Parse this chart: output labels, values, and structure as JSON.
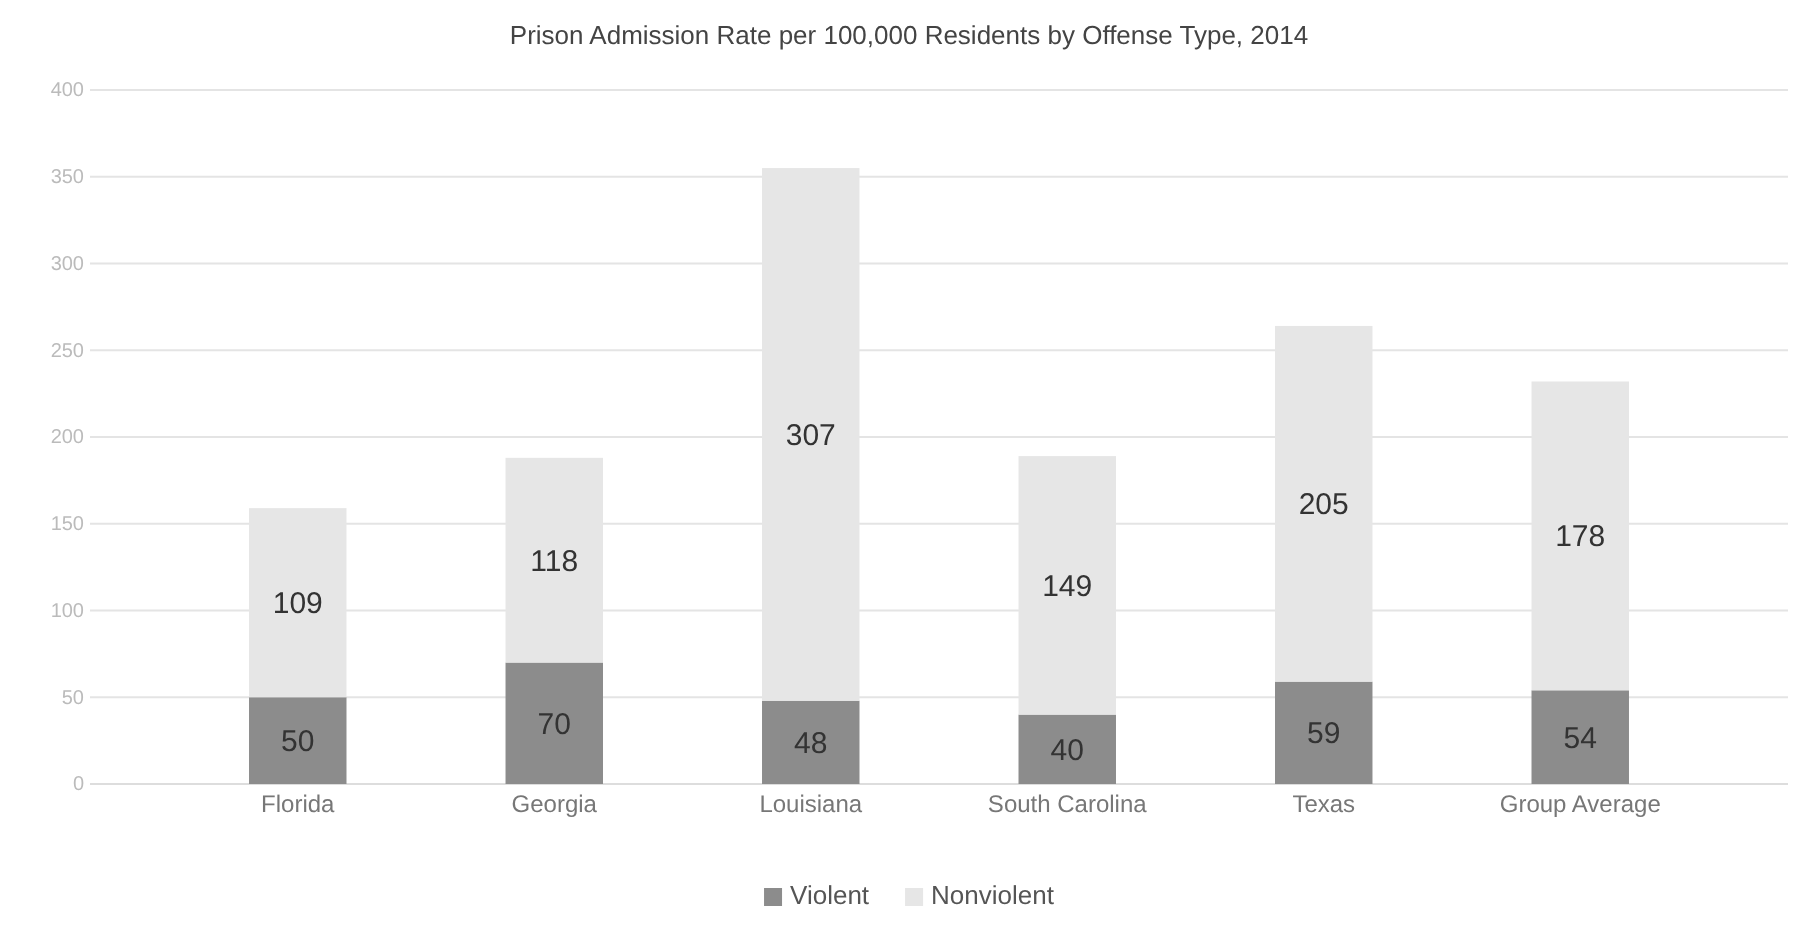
{
  "chart_data": {
    "type": "bar",
    "title": "Prison Admission Rate per 100,000 Residents by Offense Type, 2014",
    "categories": [
      "Florida",
      "Georgia",
      "Louisiana",
      "South Carolina",
      "Texas",
      "Group Average"
    ],
    "series": [
      {
        "name": "Violent",
        "color": "#8c8c8c",
        "values": [
          50,
          70,
          48,
          40,
          59,
          54
        ]
      },
      {
        "name": "Nonviolent",
        "color": "#e6e6e6",
        "values": [
          109,
          118,
          307,
          149,
          205,
          178
        ]
      }
    ],
    "stacked": true,
    "ylim": [
      0,
      400
    ],
    "yticks": [
      0,
      50,
      100,
      150,
      200,
      250,
      300,
      350,
      400
    ],
    "grid": "y",
    "legend": "bottom",
    "data_labels": true
  }
}
